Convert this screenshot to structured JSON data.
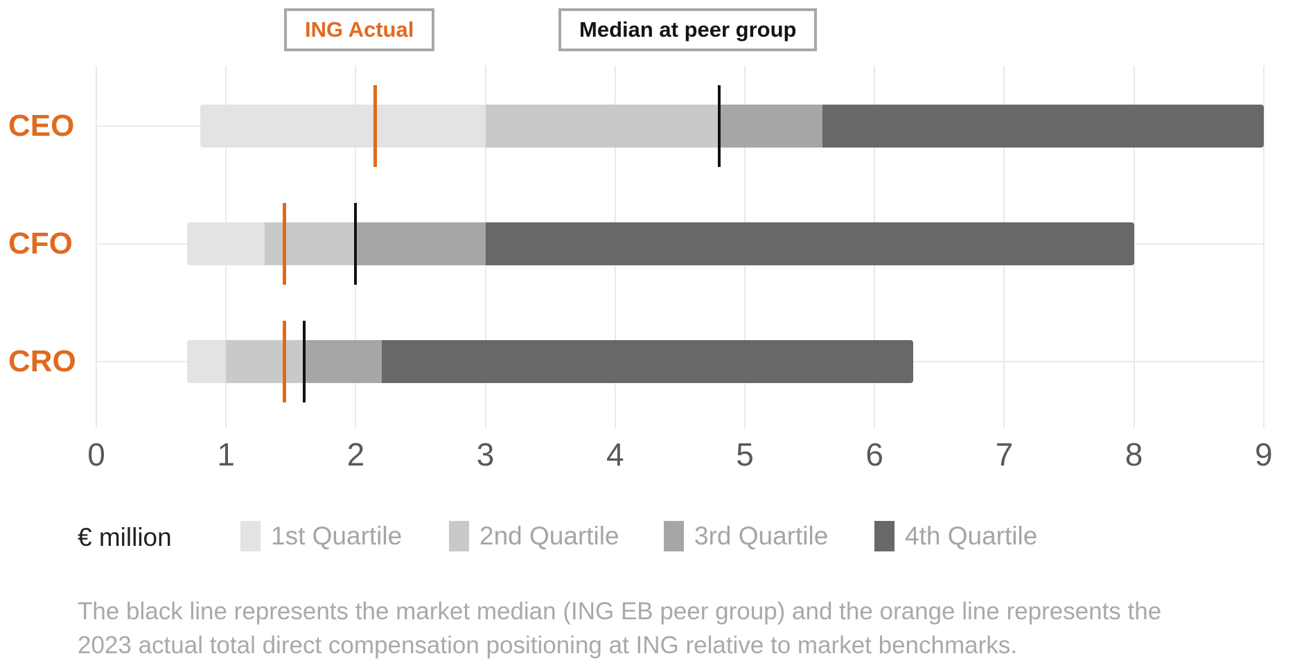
{
  "header_legend": {
    "ing_actual_label": "ING Actual",
    "median_label": "Median at peer group"
  },
  "colors": {
    "orange": "#e06a1e",
    "median_black": "#111111",
    "q1": "#e3e3e3",
    "q2": "#c9c9c9",
    "q3": "#a6a6a6",
    "q4": "#686868",
    "gridline": "#e9e9e9",
    "axis_text": "#595959",
    "legend_text": "#a5a5a5",
    "footnote_text": "#a9a9a9"
  },
  "chart_data": {
    "type": "bar",
    "orientation": "horizontal",
    "title": "",
    "xlabel": "€ million",
    "ylabel": "",
    "xlim": [
      0,
      9
    ],
    "x_ticks": [
      0,
      1,
      2,
      3,
      4,
      5,
      6,
      7,
      8,
      9
    ],
    "grid": true,
    "categories": [
      "CEO",
      "CFO",
      "CRO"
    ],
    "quartile_labels": [
      "1st Quartile",
      "2nd Quartile",
      "3rd Quartile",
      "4th Quartile"
    ],
    "series": [
      {
        "role": "CEO",
        "quartile_bounds": [
          0.8,
          3.0,
          4.8,
          5.6,
          9.0
        ],
        "median_peer_group": 4.8,
        "ing_actual": 2.15
      },
      {
        "role": "CFO",
        "quartile_bounds": [
          0.7,
          1.3,
          2.0,
          3.0,
          8.0
        ],
        "median_peer_group": 2.0,
        "ing_actual": 1.45
      },
      {
        "role": "CRO",
        "quartile_bounds": [
          0.7,
          1.0,
          1.6,
          2.2,
          6.3
        ],
        "median_peer_group": 1.6,
        "ing_actual": 1.45
      }
    ],
    "legend_position": "bottom",
    "marker_legend": [
      {
        "label": "ING Actual",
        "color": "#e06a1e"
      },
      {
        "label": "Median at peer group",
        "color": "#111111"
      }
    ]
  },
  "bottom_legend": {
    "unit_label": "€ million",
    "items": [
      {
        "label": "1st Quartile",
        "color": "#e3e3e3"
      },
      {
        "label": "2nd Quartile",
        "color": "#c9c9c9"
      },
      {
        "label": "3rd Quartile",
        "color": "#a6a6a6"
      },
      {
        "label": "4th Quartile",
        "color": "#686868"
      }
    ]
  },
  "footnote": {
    "line1": "The black line represents the market median (ING EB peer group) and the orange line represents the",
    "line2": "2023 actual total direct compensation positioning at ING relative to market benchmarks."
  }
}
